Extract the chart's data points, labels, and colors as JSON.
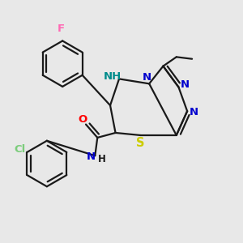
{
  "background_color": "#e8e8e8",
  "bond_color": "#1a1a1a",
  "atom_colors": {
    "F": "#ff69b4",
    "Cl": "#7ccd7c",
    "O": "#ff0000",
    "N": "#0000cd",
    "S": "#cccc00",
    "NH": "#008b8b",
    "C": "#1a1a1a"
  },
  "figsize": [
    3.0,
    3.0
  ],
  "dpi": 100
}
